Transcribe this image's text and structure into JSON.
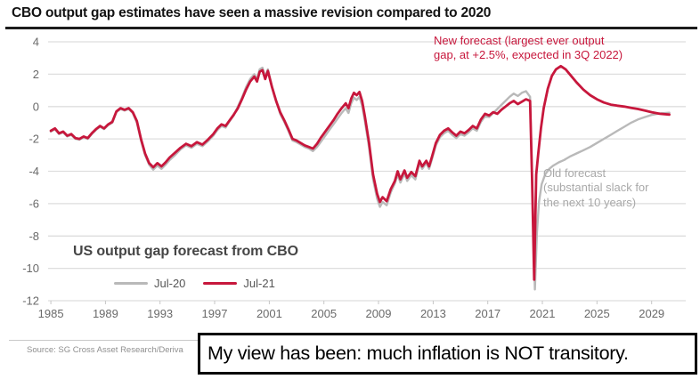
{
  "header": {
    "title": "CBO output gap estimates have seen a massive revision compared to 2020"
  },
  "chart": {
    "annotations": {
      "new_forecast": {
        "text": "New forecast (largest ever output\ngap, at +2.5%, expected in 3Q 2022)",
        "color": "#c7173c"
      },
      "old_forecast": {
        "text": "Old forecast\n(substantial slack for\nthe next 10 years)",
        "color": "#a9a9a9"
      }
    }
  },
  "chart_data": {
    "type": "line",
    "title": "US output gap forecast from CBO",
    "xlabel": "",
    "ylabel": "",
    "x_ticks": [
      1985,
      1989,
      1993,
      1997,
      2001,
      2005,
      2009,
      2013,
      2017,
      2021,
      2025,
      2029
    ],
    "y_ticks": [
      4,
      2,
      0,
      -2,
      -4,
      -6,
      -8,
      -10,
      -12
    ],
    "xlim": [
      1984.8,
      2031.5
    ],
    "ylim": [
      -12,
      4
    ],
    "grid": "horizontal",
    "legend_position": "bottom-left",
    "series": [
      {
        "name": "Jul-20",
        "color": "#b9b9b9",
        "points": [
          [
            1985.0,
            -1.55
          ],
          [
            1985.3,
            -1.4
          ],
          [
            1985.6,
            -1.7
          ],
          [
            1985.9,
            -1.6
          ],
          [
            1986.2,
            -1.85
          ],
          [
            1986.5,
            -1.75
          ],
          [
            1986.8,
            -2.0
          ],
          [
            1987.1,
            -2.05
          ],
          [
            1987.4,
            -1.9
          ],
          [
            1987.7,
            -2.0
          ],
          [
            1988.0,
            -1.7
          ],
          [
            1988.3,
            -1.45
          ],
          [
            1988.6,
            -1.25
          ],
          [
            1988.9,
            -1.4
          ],
          [
            1989.2,
            -1.15
          ],
          [
            1989.5,
            -1.0
          ],
          [
            1989.8,
            -0.35
          ],
          [
            1990.1,
            -0.15
          ],
          [
            1990.4,
            -0.25
          ],
          [
            1990.7,
            -0.15
          ],
          [
            1991.0,
            -0.4
          ],
          [
            1991.3,
            -1.0
          ],
          [
            1991.6,
            -2.1
          ],
          [
            1991.9,
            -3.0
          ],
          [
            1992.2,
            -3.6
          ],
          [
            1992.5,
            -3.9
          ],
          [
            1992.8,
            -3.65
          ],
          [
            1993.1,
            -3.85
          ],
          [
            1993.4,
            -3.6
          ],
          [
            1993.7,
            -3.3
          ],
          [
            1994.1,
            -3.0
          ],
          [
            1994.5,
            -2.65
          ],
          [
            1994.9,
            -2.4
          ],
          [
            1995.3,
            -2.55
          ],
          [
            1995.7,
            -2.3
          ],
          [
            1996.1,
            -2.45
          ],
          [
            1996.5,
            -2.15
          ],
          [
            1996.9,
            -1.8
          ],
          [
            1997.2,
            -1.45
          ],
          [
            1997.5,
            -1.2
          ],
          [
            1997.8,
            -1.3
          ],
          [
            1998.1,
            -0.9
          ],
          [
            1998.4,
            -0.55
          ],
          [
            1998.7,
            0.0
          ],
          [
            1999.0,
            0.55
          ],
          [
            1999.3,
            1.2
          ],
          [
            1999.6,
            1.7
          ],
          [
            1999.9,
            2.0
          ],
          [
            2000.1,
            1.7
          ],
          [
            2000.3,
            2.3
          ],
          [
            2000.5,
            2.4
          ],
          [
            2000.7,
            1.85
          ],
          [
            2000.9,
            2.3
          ],
          [
            2001.2,
            1.25
          ],
          [
            2001.5,
            0.4
          ],
          [
            2001.8,
            -0.45
          ],
          [
            2002.1,
            -0.95
          ],
          [
            2002.4,
            -1.5
          ],
          [
            2002.7,
            -2.1
          ],
          [
            2003.0,
            -2.2
          ],
          [
            2003.3,
            -2.35
          ],
          [
            2003.6,
            -2.5
          ],
          [
            2003.9,
            -2.6
          ],
          [
            2004.2,
            -2.75
          ],
          [
            2004.5,
            -2.5
          ],
          [
            2004.8,
            -2.15
          ],
          [
            2005.1,
            -1.8
          ],
          [
            2005.4,
            -1.45
          ],
          [
            2005.7,
            -1.1
          ],
          [
            2006.0,
            -0.75
          ],
          [
            2006.3,
            -0.4
          ],
          [
            2006.6,
            -0.1
          ],
          [
            2006.8,
            -0.4
          ],
          [
            2007.0,
            0.2
          ],
          [
            2007.2,
            0.55
          ],
          [
            2007.4,
            0.4
          ],
          [
            2007.6,
            0.6
          ],
          [
            2007.8,
            0.05
          ],
          [
            2008.0,
            -0.9
          ],
          [
            2008.3,
            -2.5
          ],
          [
            2008.6,
            -4.5
          ],
          [
            2008.9,
            -5.7
          ],
          [
            2009.1,
            -6.2
          ],
          [
            2009.3,
            -5.9
          ],
          [
            2009.6,
            -6.1
          ],
          [
            2009.9,
            -5.3
          ],
          [
            2010.2,
            -4.75
          ],
          [
            2010.4,
            -4.2
          ],
          [
            2010.6,
            -4.7
          ],
          [
            2010.9,
            -4.15
          ],
          [
            2011.1,
            -4.6
          ],
          [
            2011.4,
            -4.25
          ],
          [
            2011.7,
            -4.5
          ],
          [
            2012.0,
            -3.5
          ],
          [
            2012.2,
            -3.85
          ],
          [
            2012.5,
            -3.5
          ],
          [
            2012.7,
            -3.85
          ],
          [
            2012.9,
            -3.3
          ],
          [
            2013.2,
            -2.4
          ],
          [
            2013.5,
            -1.9
          ],
          [
            2013.8,
            -1.65
          ],
          [
            2014.1,
            -1.5
          ],
          [
            2014.4,
            -1.75
          ],
          [
            2014.7,
            -1.95
          ],
          [
            2015.0,
            -1.7
          ],
          [
            2015.3,
            -1.8
          ],
          [
            2015.6,
            -1.6
          ],
          [
            2015.9,
            -1.35
          ],
          [
            2016.2,
            -1.5
          ],
          [
            2016.5,
            -0.95
          ],
          [
            2016.8,
            -0.6
          ],
          [
            2017.1,
            -0.65
          ],
          [
            2017.4,
            -0.4
          ],
          [
            2017.7,
            -0.15
          ],
          [
            2018.0,
            0.1
          ],
          [
            2018.3,
            0.35
          ],
          [
            2018.6,
            0.6
          ],
          [
            2018.9,
            0.8
          ],
          [
            2019.2,
            0.65
          ],
          [
            2019.5,
            0.85
          ],
          [
            2019.8,
            0.95
          ],
          [
            2020.1,
            0.6
          ],
          [
            2020.28,
            -5.5
          ],
          [
            2020.45,
            -11.3
          ],
          [
            2020.6,
            -7.8
          ],
          [
            2020.75,
            -5.9
          ],
          [
            2020.95,
            -4.8
          ],
          [
            2021.2,
            -4.2
          ],
          [
            2021.5,
            -3.85
          ],
          [
            2021.8,
            -3.65
          ],
          [
            2022.2,
            -3.45
          ],
          [
            2022.6,
            -3.3
          ],
          [
            2023.0,
            -3.1
          ],
          [
            2023.5,
            -2.9
          ],
          [
            2024.0,
            -2.7
          ],
          [
            2024.5,
            -2.5
          ],
          [
            2025.0,
            -2.25
          ],
          [
            2025.5,
            -2.0
          ],
          [
            2026.0,
            -1.75
          ],
          [
            2026.5,
            -1.5
          ],
          [
            2027.0,
            -1.25
          ],
          [
            2027.5,
            -1.0
          ],
          [
            2028.0,
            -0.8
          ],
          [
            2028.5,
            -0.65
          ],
          [
            2029.0,
            -0.52
          ],
          [
            2029.6,
            -0.42
          ],
          [
            2030.3,
            -0.38
          ]
        ]
      },
      {
        "name": "Jul-21",
        "color": "#c7173c",
        "points": [
          [
            1985.0,
            -1.5
          ],
          [
            1985.3,
            -1.35
          ],
          [
            1985.6,
            -1.65
          ],
          [
            1985.9,
            -1.55
          ],
          [
            1986.2,
            -1.8
          ],
          [
            1986.5,
            -1.7
          ],
          [
            1986.8,
            -1.95
          ],
          [
            1987.1,
            -2.0
          ],
          [
            1987.4,
            -1.85
          ],
          [
            1987.7,
            -1.95
          ],
          [
            1988.0,
            -1.65
          ],
          [
            1988.3,
            -1.4
          ],
          [
            1988.6,
            -1.2
          ],
          [
            1988.9,
            -1.35
          ],
          [
            1989.2,
            -1.1
          ],
          [
            1989.5,
            -0.95
          ],
          [
            1989.8,
            -0.3
          ],
          [
            1990.1,
            -0.1
          ],
          [
            1990.4,
            -0.2
          ],
          [
            1990.7,
            -0.1
          ],
          [
            1991.0,
            -0.35
          ],
          [
            1991.3,
            -0.9
          ],
          [
            1991.6,
            -2.0
          ],
          [
            1991.9,
            -2.9
          ],
          [
            1992.2,
            -3.5
          ],
          [
            1992.5,
            -3.75
          ],
          [
            1992.8,
            -3.5
          ],
          [
            1993.1,
            -3.7
          ],
          [
            1993.4,
            -3.45
          ],
          [
            1993.7,
            -3.15
          ],
          [
            1994.1,
            -2.85
          ],
          [
            1994.5,
            -2.55
          ],
          [
            1994.9,
            -2.3
          ],
          [
            1995.3,
            -2.45
          ],
          [
            1995.7,
            -2.2
          ],
          [
            1996.1,
            -2.35
          ],
          [
            1996.5,
            -2.05
          ],
          [
            1996.9,
            -1.7
          ],
          [
            1997.2,
            -1.35
          ],
          [
            1997.5,
            -1.1
          ],
          [
            1997.8,
            -1.2
          ],
          [
            1998.1,
            -0.85
          ],
          [
            1998.4,
            -0.5
          ],
          [
            1998.7,
            -0.1
          ],
          [
            1999.0,
            0.45
          ],
          [
            1999.3,
            1.05
          ],
          [
            1999.6,
            1.55
          ],
          [
            1999.9,
            1.85
          ],
          [
            2000.1,
            1.55
          ],
          [
            2000.3,
            2.15
          ],
          [
            2000.5,
            2.25
          ],
          [
            2000.7,
            1.7
          ],
          [
            2000.9,
            2.2
          ],
          [
            2001.2,
            1.2
          ],
          [
            2001.5,
            0.35
          ],
          [
            2001.8,
            -0.35
          ],
          [
            2002.1,
            -0.85
          ],
          [
            2002.4,
            -1.4
          ],
          [
            2002.7,
            -2.0
          ],
          [
            2003.0,
            -2.1
          ],
          [
            2003.3,
            -2.25
          ],
          [
            2003.6,
            -2.4
          ],
          [
            2003.9,
            -2.5
          ],
          [
            2004.2,
            -2.6
          ],
          [
            2004.5,
            -2.3
          ],
          [
            2004.8,
            -1.9
          ],
          [
            2005.1,
            -1.55
          ],
          [
            2005.4,
            -1.2
          ],
          [
            2005.7,
            -0.85
          ],
          [
            2006.0,
            -0.45
          ],
          [
            2006.3,
            -0.1
          ],
          [
            2006.6,
            0.2
          ],
          [
            2006.8,
            -0.1
          ],
          [
            2007.0,
            0.5
          ],
          [
            2007.2,
            0.85
          ],
          [
            2007.4,
            0.7
          ],
          [
            2007.6,
            0.9
          ],
          [
            2007.8,
            0.35
          ],
          [
            2008.0,
            -0.6
          ],
          [
            2008.3,
            -2.2
          ],
          [
            2008.6,
            -4.2
          ],
          [
            2008.9,
            -5.4
          ],
          [
            2009.1,
            -5.9
          ],
          [
            2009.3,
            -5.6
          ],
          [
            2009.6,
            -5.85
          ],
          [
            2009.9,
            -5.1
          ],
          [
            2010.2,
            -4.6
          ],
          [
            2010.4,
            -4.0
          ],
          [
            2010.6,
            -4.5
          ],
          [
            2010.9,
            -3.95
          ],
          [
            2011.1,
            -4.4
          ],
          [
            2011.4,
            -4.05
          ],
          [
            2011.7,
            -4.3
          ],
          [
            2012.0,
            -3.35
          ],
          [
            2012.2,
            -3.7
          ],
          [
            2012.5,
            -3.35
          ],
          [
            2012.7,
            -3.7
          ],
          [
            2012.9,
            -3.15
          ],
          [
            2013.2,
            -2.25
          ],
          [
            2013.5,
            -1.75
          ],
          [
            2013.8,
            -1.5
          ],
          [
            2014.1,
            -1.35
          ],
          [
            2014.4,
            -1.6
          ],
          [
            2014.7,
            -1.8
          ],
          [
            2015.0,
            -1.55
          ],
          [
            2015.3,
            -1.65
          ],
          [
            2015.6,
            -1.45
          ],
          [
            2015.9,
            -1.2
          ],
          [
            2016.2,
            -1.35
          ],
          [
            2016.5,
            -0.8
          ],
          [
            2016.8,
            -0.45
          ],
          [
            2017.1,
            -0.55
          ],
          [
            2017.4,
            -0.35
          ],
          [
            2017.7,
            -0.45
          ],
          [
            2018.0,
            -0.2
          ],
          [
            2018.3,
            0.0
          ],
          [
            2018.6,
            0.2
          ],
          [
            2018.9,
            0.35
          ],
          [
            2019.2,
            0.15
          ],
          [
            2019.5,
            0.3
          ],
          [
            2019.8,
            0.45
          ],
          [
            2020.1,
            0.35
          ],
          [
            2020.25,
            -4.6
          ],
          [
            2020.4,
            -10.7
          ],
          [
            2020.55,
            -4.2
          ],
          [
            2020.7,
            -2.9
          ],
          [
            2020.9,
            -1.3
          ],
          [
            2021.1,
            -0.1
          ],
          [
            2021.4,
            1.1
          ],
          [
            2021.7,
            1.9
          ],
          [
            2022.0,
            2.3
          ],
          [
            2022.35,
            2.5
          ],
          [
            2022.7,
            2.3
          ],
          [
            2023.1,
            1.9
          ],
          [
            2023.5,
            1.5
          ],
          [
            2024.0,
            1.05
          ],
          [
            2024.5,
            0.7
          ],
          [
            2025.0,
            0.45
          ],
          [
            2025.5,
            0.25
          ],
          [
            2026.0,
            0.12
          ],
          [
            2026.5,
            0.05
          ],
          [
            2027.0,
            0.0
          ],
          [
            2027.5,
            -0.08
          ],
          [
            2028.0,
            -0.15
          ],
          [
            2028.5,
            -0.25
          ],
          [
            2029.0,
            -0.35
          ],
          [
            2029.6,
            -0.45
          ],
          [
            2030.3,
            -0.5
          ]
        ]
      }
    ]
  },
  "footer": {
    "source": "Source: SG Cross Asset Research/Deriva"
  },
  "overlay": {
    "text": "My view has been: much inflation is NOT transitory."
  }
}
